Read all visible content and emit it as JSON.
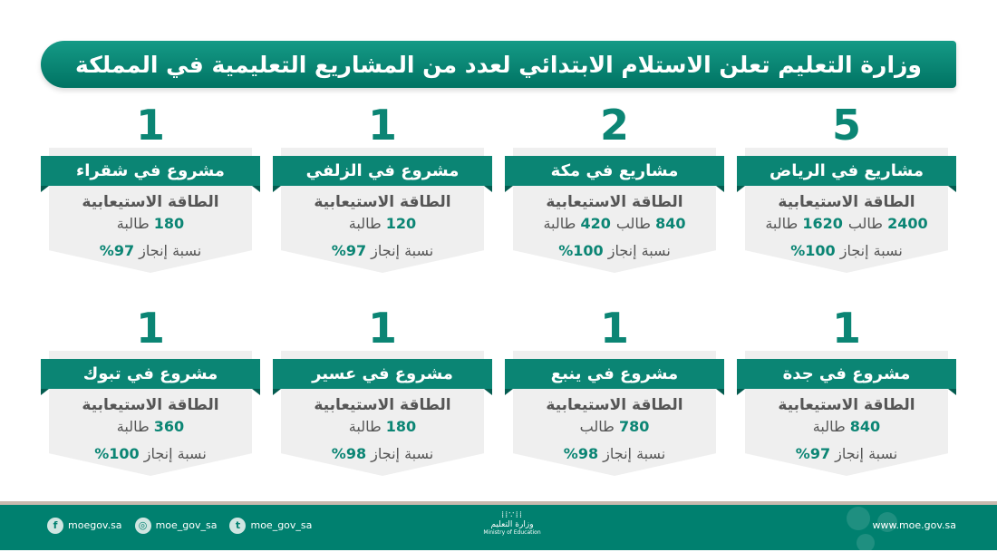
{
  "header": {
    "title": "وزارة التعليم تعلن الاستلام الابتدائي لعدد من المشاريع التعليمية في المملكة"
  },
  "colors": {
    "accent": "#0b8574",
    "footer": "#00806f"
  },
  "cards": [
    {
      "count": "5",
      "title": "مشاريع في الرياض",
      "cap_title": "الطاقة الاستيعابية",
      "capacity": [
        {
          "num": "2400",
          "label": "طالب"
        },
        {
          "num": "1620",
          "label": "طالبة"
        }
      ],
      "prog_label": "نسبة إنجاز",
      "progress": "100%"
    },
    {
      "count": "2",
      "title": "مشاريع في مكة",
      "cap_title": "الطاقة الاستيعابية",
      "capacity": [
        {
          "num": "840",
          "label": "طالب"
        },
        {
          "num": "420",
          "label": "طالبة"
        }
      ],
      "prog_label": "نسبة إنجاز",
      "progress": "100%"
    },
    {
      "count": "1",
      "title": "مشروع في الزلفي",
      "cap_title": "الطاقة الاستيعابية",
      "capacity": [
        {
          "num": "120",
          "label": "طالبة"
        }
      ],
      "prog_label": "نسبة إنجاز",
      "progress": "97%"
    },
    {
      "count": "1",
      "title": "مشروع في شقراء",
      "cap_title": "الطاقة الاستيعابية",
      "capacity": [
        {
          "num": "180",
          "label": "طالبة"
        }
      ],
      "prog_label": "نسبة إنجاز",
      "progress": "97%"
    },
    {
      "count": "1",
      "title": "مشروع في جدة",
      "cap_title": "الطاقة الاستيعابية",
      "capacity": [
        {
          "num": "840",
          "label": "طالبة"
        }
      ],
      "prog_label": "نسبة إنجاز",
      "progress": "97%"
    },
    {
      "count": "1",
      "title": "مشروع في ينبع",
      "cap_title": "الطاقة الاستيعابية",
      "capacity": [
        {
          "num": "780",
          "label": "طالب"
        }
      ],
      "prog_label": "نسبة إنجاز",
      "progress": "98%"
    },
    {
      "count": "1",
      "title": "مشروع في عسير",
      "cap_title": "الطاقة الاستيعابية",
      "capacity": [
        {
          "num": "180",
          "label": "طالبة"
        }
      ],
      "prog_label": "نسبة إنجاز",
      "progress": "98%"
    },
    {
      "count": "1",
      "title": "مشروع في تبوك",
      "cap_title": "الطاقة الاستيعابية",
      "capacity": [
        {
          "num": "360",
          "label": "طالبة"
        }
      ],
      "prog_label": "نسبة إنجاز",
      "progress": "100%"
    }
  ],
  "footer": {
    "social": [
      {
        "icon": "facebook-icon",
        "glyph": "f",
        "handle": "moegov.sa"
      },
      {
        "icon": "instagram-icon",
        "glyph": "◎",
        "handle": "moe_gov_sa"
      },
      {
        "icon": "twitter-icon",
        "glyph": "t",
        "handle": "moe_gov_sa"
      }
    ],
    "logo_ar": "وزارة التعليم",
    "logo_en": "Ministry of Education",
    "website": "www.moe.gov.sa"
  }
}
